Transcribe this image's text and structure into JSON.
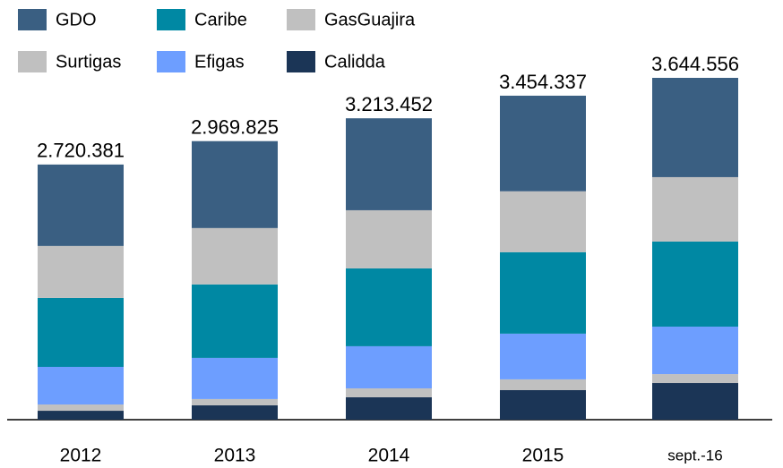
{
  "chart_data": {
    "type": "stacked_bar",
    "categories": [
      "2012",
      "2013",
      "2014",
      "2015",
      "sept.-16"
    ],
    "series": [
      {
        "name": "GDO",
        "color": "#3a5f82",
        "values": [
          868381,
          926825,
          980452,
          1019337,
          1058556
        ]
      },
      {
        "name": "Caribe",
        "color": "#0088a3",
        "values": [
          735000,
          783000,
          830000,
          869000,
          907000
        ]
      },
      {
        "name": "GasGuajira",
        "color": "#c0c0c0",
        "values": [
          67000,
          67000,
          95000,
          115000,
          95000
        ]
      },
      {
        "name": "Surtigas",
        "color": "#c0c0c0",
        "values": [
          554000,
          601000,
          620000,
          649000,
          687000
        ]
      },
      {
        "name": "Efigas",
        "color": "#6d9eff",
        "values": [
          401000,
          439000,
          449000,
          487000,
          506000
        ]
      },
      {
        "name": "Calidda",
        "color": "#1b3556",
        "values": [
          95000,
          153000,
          239000,
          315000,
          391000
        ]
      }
    ],
    "totals": {
      "values": [
        2720381,
        2969825,
        3213452,
        3454337,
        3644556
      ],
      "value_labels": [
        "2.720.381",
        "2.969.825",
        "3.213.452",
        "3.454.337",
        "3.644.556"
      ]
    }
  }
}
